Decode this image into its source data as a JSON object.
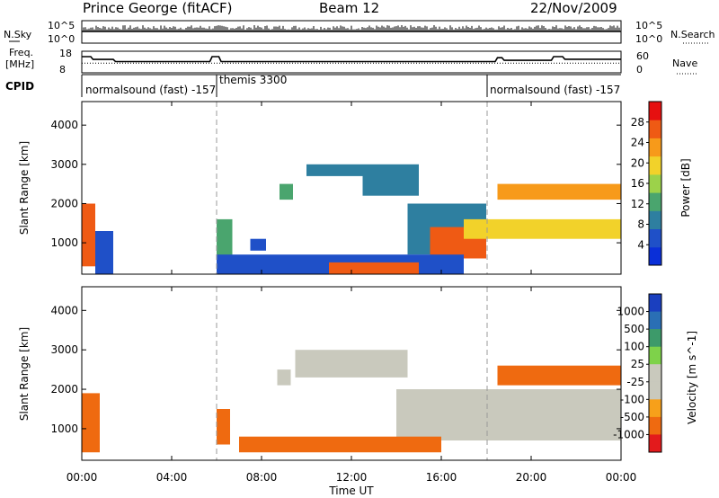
{
  "header": {
    "station": "Prince George (fitACF)",
    "beam": "Beam 12",
    "date": "22/Nov/2009"
  },
  "nsky_panel": {
    "left_label": "N.Sky",
    "left_ticks": [
      "10^5",
      "10^0"
    ],
    "right_label": "N.Search",
    "right_ticks": [
      "10^5",
      "10^0"
    ]
  },
  "freq_panel": {
    "left_label_1": "Freq.",
    "left_label_2": "[MHz]",
    "left_ticks": [
      "18",
      "8"
    ],
    "right_label": "Nave",
    "right_ticks": [
      "60",
      "0"
    ]
  },
  "cpid_panel": {
    "label": "CPID",
    "segments": [
      "normalsound (fast) -157",
      "themis 3300",
      "normalsound (fast) -157"
    ]
  },
  "colors": {
    "power_scale": [
      "#0a2fd8",
      "#1f50c8",
      "#2e7fa0",
      "#4aa56e",
      "#9cd24a",
      "#f2d22a",
      "#f79a1a",
      "#ef5a14",
      "#e61010"
    ],
    "velocity_scale": [
      "#e31a1c",
      "#ef6a10",
      "#f7a01a",
      "#c9c9bd",
      "#c9c9bd",
      "#7ed24a",
      "#3d9a6a",
      "#2a6fb5",
      "#1a3fbf"
    ]
  },
  "chart_data": [
    {
      "type": "line",
      "title": "N.Sky / N.Search",
      "x_range_hours": [
        0,
        24
      ],
      "ylim_left": [
        "10^0",
        "10^5"
      ],
      "series": [
        {
          "name": "N.Sky",
          "x": [
            0,
            0.05,
            6,
            12,
            18,
            24
          ],
          "y": [
            1000,
            1000,
            1000,
            1000,
            1000,
            1000
          ]
        }
      ]
    },
    {
      "type": "line",
      "title": "Freq / Nave",
      "ylim_left": [
        8,
        18
      ],
      "ylim_right": [
        0,
        60
      ],
      "series": [
        {
          "name": "Freq",
          "x": [
            0,
            0.4,
            0.5,
            1.4,
            1.5,
            5.7,
            5.8,
            6.1,
            6.2,
            18.4,
            18.5,
            18.7,
            18.8,
            20.9,
            21.0,
            21.4,
            21.5,
            24
          ],
          "y": [
            15.5,
            15.5,
            14.2,
            14.2,
            13.2,
            13.2,
            15.5,
            15.5,
            13.2,
            13.2,
            15.0,
            15.0,
            13.8,
            13.8,
            15.5,
            15.5,
            14.3,
            14.3
          ]
        },
        {
          "name": "Nave",
          "x": [
            0,
            24
          ],
          "y": [
            27,
            27
          ]
        }
      ]
    },
    {
      "type": "heatmap",
      "title": "Power",
      "xlabel": "",
      "ylabel": "Slant Range [km]",
      "colorbar_label": "Power [dB]",
      "colorbar_ticks": [
        4,
        8,
        12,
        16,
        20,
        24,
        28
      ],
      "colorbar_range": [
        0,
        32
      ],
      "x_range_hours": [
        0,
        24
      ],
      "ylim": [
        200,
        4600
      ],
      "yticks": [
        1000,
        2000,
        3000,
        4000
      ],
      "echo_regions": [
        {
          "t": [
            0.0,
            0.6
          ],
          "r": [
            400,
            2000
          ],
          "value": 26
        },
        {
          "t": [
            0.6,
            1.4
          ],
          "r": [
            200,
            1300
          ],
          "value": 6
        },
        {
          "t": [
            6.0,
            6.7
          ],
          "r": [
            600,
            1600
          ],
          "value": 14
        },
        {
          "t": [
            7.5,
            8.2
          ],
          "r": [
            800,
            1100
          ],
          "value": 6
        },
        {
          "t": [
            8.8,
            9.4
          ],
          "r": [
            2100,
            2500
          ],
          "value": 12
        },
        {
          "t": [
            10.0,
            12.5
          ],
          "r": [
            2700,
            3000
          ],
          "value": 10
        },
        {
          "t": [
            12.5,
            15.0
          ],
          "r": [
            2200,
            3000
          ],
          "value": 10
        },
        {
          "t": [
            14.5,
            18.0
          ],
          "r": [
            700,
            2000
          ],
          "value": 10
        },
        {
          "t": [
            15.5,
            18.0
          ],
          "r": [
            600,
            1400
          ],
          "value": 26
        },
        {
          "t": [
            17.0,
            24.0
          ],
          "r": [
            1100,
            1600
          ],
          "value": 18
        },
        {
          "t": [
            18.5,
            24.0
          ],
          "r": [
            2100,
            2500
          ],
          "value": 22
        },
        {
          "t": [
            6.0,
            17.0
          ],
          "r": [
            200,
            700
          ],
          "value": 7
        },
        {
          "t": [
            11.0,
            15.0
          ],
          "r": [
            200,
            500
          ],
          "value": 27
        }
      ]
    },
    {
      "type": "heatmap",
      "title": "Velocity",
      "xlabel": "Time UT",
      "ylabel": "Slant Range [km]",
      "colorbar_label": "Velocity [m s^-1]",
      "colorbar_ticks": [
        "1000",
        "500",
        "100",
        "25",
        "-25",
        "-100",
        "-500",
        "-1000"
      ],
      "x_range_hours": [
        0,
        24
      ],
      "xticks": [
        "00:00",
        "04:00",
        "08:00",
        "12:00",
        "16:00",
        "20:00",
        "00:00"
      ],
      "ylim": [
        200,
        4600
      ],
      "yticks": [
        1000,
        2000,
        3000,
        4000
      ],
      "echo_regions": [
        {
          "t": [
            0.0,
            0.8
          ],
          "r": [
            400,
            1900
          ],
          "value": -150
        },
        {
          "t": [
            6.0,
            6.6
          ],
          "r": [
            600,
            1500
          ],
          "value": -150
        },
        {
          "t": [
            8.7,
            9.3
          ],
          "r": [
            2100,
            2500
          ],
          "value": 0
        },
        {
          "t": [
            9.5,
            14.5
          ],
          "r": [
            2300,
            3000
          ],
          "value": 0
        },
        {
          "t": [
            14.0,
            24.0
          ],
          "r": [
            700,
            2000
          ],
          "value": 0
        },
        {
          "t": [
            7.0,
            16.0
          ],
          "r": [
            400,
            800
          ],
          "value": -120
        },
        {
          "t": [
            18.5,
            24.0
          ],
          "r": [
            2100,
            2600
          ],
          "value": -200
        }
      ]
    }
  ]
}
